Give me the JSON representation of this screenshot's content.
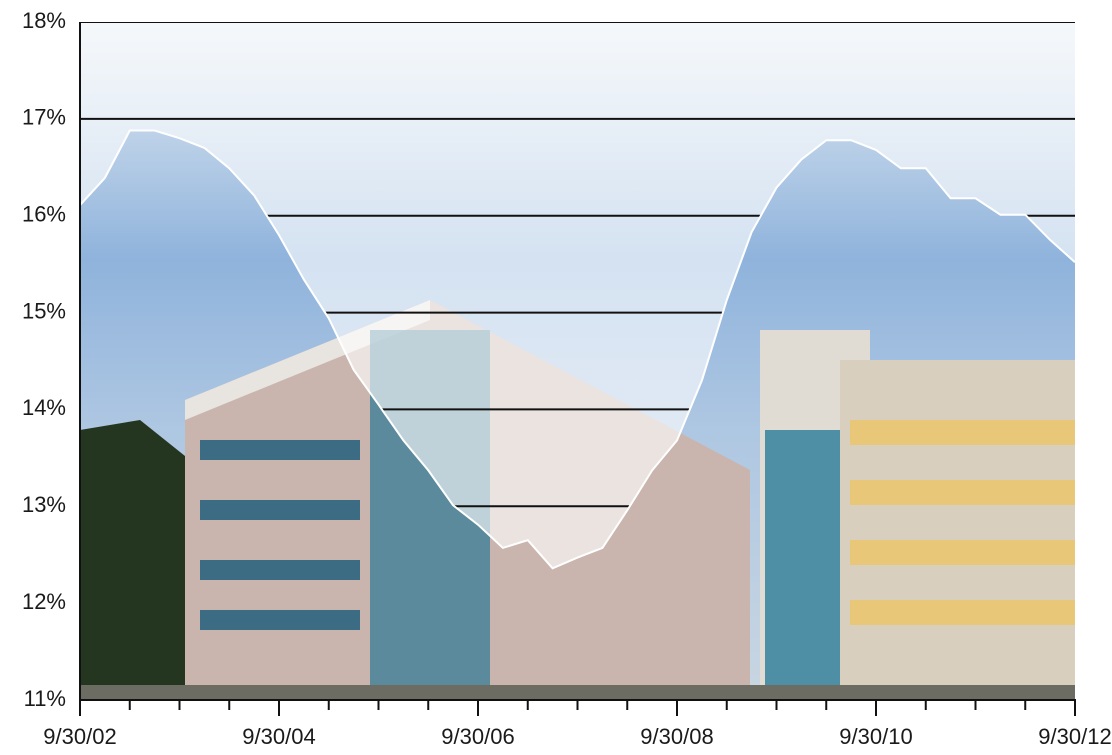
{
  "chart_data": {
    "type": "area",
    "color": "#ffffff",
    "grid": true,
    "categories": [
      "9/30/02",
      null,
      null,
      null,
      null,
      null,
      null,
      null,
      "9/30/04",
      null,
      null,
      null,
      null,
      null,
      null,
      null,
      "9/30/06",
      null,
      null,
      null,
      null,
      null,
      null,
      null,
      "9/30/08",
      null,
      null,
      null,
      null,
      null,
      null,
      null,
      "9/30/10",
      null,
      null,
      null,
      null,
      null,
      null,
      null,
      "9/30/12"
    ],
    "values": [
      16.11,
      16.39,
      16.88,
      16.88,
      16.8,
      16.7,
      16.49,
      16.21,
      15.8,
      15.34,
      14.94,
      14.41,
      14.05,
      13.68,
      13.37,
      13.01,
      12.81,
      12.57,
      12.65,
      12.36,
      12.47,
      12.57,
      12.96,
      13.37,
      13.68,
      14.3,
      15.13,
      15.83,
      16.29,
      16.58,
      16.78,
      16.78,
      16.68,
      16.49,
      16.49,
      16.18,
      16.18,
      16.01,
      16.01,
      15.75,
      15.52
    ],
    "ylim": [
      11,
      18
    ],
    "yticks": [
      {
        "value": 11,
        "label": "11%"
      },
      {
        "value": 12,
        "label": "12%"
      },
      {
        "value": 13,
        "label": "13%"
      },
      {
        "value": 14,
        "label": "14%"
      },
      {
        "value": 15,
        "label": "15%"
      },
      {
        "value": 16,
        "label": "16%"
      },
      {
        "value": 17,
        "label": "17%"
      },
      {
        "value": 18,
        "label": "18%"
      }
    ]
  }
}
